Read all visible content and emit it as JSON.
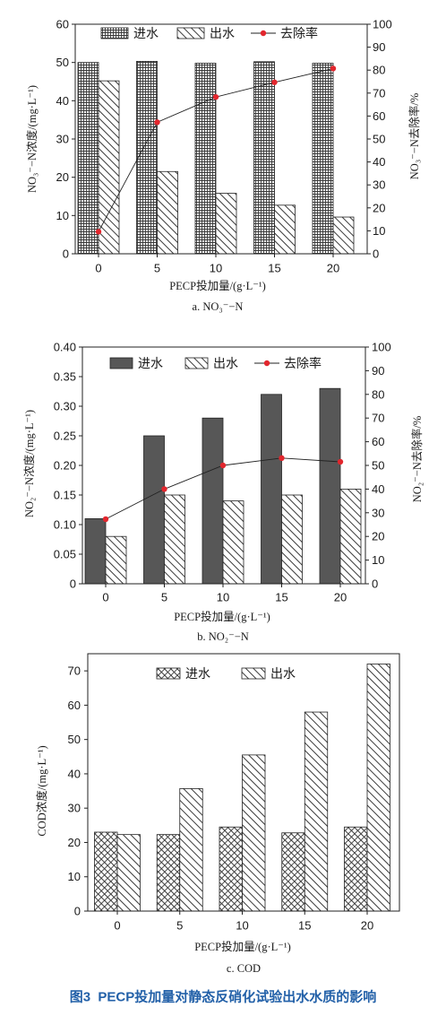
{
  "figure": {
    "caption": "图3  PECP投加量对静态反硝化试验出水水质的影响"
  },
  "colors": {
    "caption": "#2260a8",
    "axis": "#222222",
    "pattern_ink": "#3a3a3a",
    "bar_solid": "#575757",
    "rate_line": "#222222",
    "rate_marker": "#e2262d"
  },
  "chart_data": [
    {
      "type": "bar",
      "subcaption": "a. NO₃⁻−N",
      "categories": [
        "0",
        "5",
        "10",
        "15",
        "20"
      ],
      "xlabel": "PECP投加量/(g·L⁻¹)",
      "ylabel": "NO₃⁻−N浓度/(mg·L⁻¹)",
      "ylabel_right": "NO₃⁻−N去除率/%",
      "ylim": [
        0,
        60
      ],
      "yticks": [
        "0",
        "10",
        "20",
        "30",
        "40",
        "50",
        "60"
      ],
      "ylim_right": [
        0,
        100
      ],
      "yticks_right": [
        "0",
        "10",
        "20",
        "30",
        "40",
        "50",
        "60",
        "70",
        "80",
        "90",
        "100"
      ],
      "grid": false,
      "legend": {
        "position": "top"
      },
      "series": [
        {
          "name": "进水",
          "type": "bar",
          "values": [
            50.0,
            50.3,
            49.8,
            50.2,
            49.8
          ]
        },
        {
          "name": "出水",
          "type": "bar",
          "values": [
            45.2,
            21.5,
            15.8,
            12.7,
            9.6
          ]
        },
        {
          "name": "去除率",
          "type": "line",
          "axis": "right",
          "values": [
            9.6,
            57.3,
            68.3,
            74.7,
            80.7
          ]
        }
      ]
    },
    {
      "type": "bar",
      "subcaption": "b. NO₂⁻−N",
      "categories": [
        "0",
        "5",
        "10",
        "15",
        "20"
      ],
      "xlabel": "PECP投加量/(g·L⁻¹)",
      "ylabel": "NO₂⁻−N浓度/(mg·L⁻¹)",
      "ylabel_right": "NO₂⁻−N去除率/%",
      "ylim": [
        0,
        0.4
      ],
      "yticks": [
        "0",
        "0.05",
        "0.10",
        "0.15",
        "0.20",
        "0.25",
        "0.30",
        "0.35",
        "0.40"
      ],
      "ylim_right": [
        0,
        100
      ],
      "yticks_right": [
        "0",
        "10",
        "20",
        "30",
        "40",
        "50",
        "60",
        "70",
        "80",
        "90",
        "100"
      ],
      "grid": false,
      "legend": {
        "position": "top"
      },
      "series": [
        {
          "name": "进水",
          "type": "bar",
          "values": [
            0.11,
            0.25,
            0.28,
            0.32,
            0.33
          ]
        },
        {
          "name": "出水",
          "type": "bar",
          "values": [
            0.08,
            0.15,
            0.14,
            0.15,
            0.16
          ]
        },
        {
          "name": "去除率",
          "type": "line",
          "axis": "right",
          "values": [
            27.3,
            40.0,
            50.0,
            53.1,
            51.5
          ]
        }
      ]
    },
    {
      "type": "bar",
      "subcaption": "c. COD",
      "categories": [
        "0",
        "5",
        "10",
        "15",
        "20"
      ],
      "xlabel": "PECP投加量/(g·L⁻¹)",
      "ylabel": "COD浓度/(mg·L⁻¹)",
      "ylim": [
        0,
        75
      ],
      "yticks": [
        "0",
        "10",
        "20",
        "30",
        "40",
        "50",
        "60",
        "70"
      ],
      "grid": false,
      "legend": {
        "position": "top"
      },
      "series": [
        {
          "name": "进水",
          "type": "bar",
          "values": [
            23.0,
            22.3,
            24.5,
            22.8,
            24.5
          ]
        },
        {
          "name": "出水",
          "type": "bar",
          "values": [
            22.3,
            35.7,
            45.5,
            58.0,
            72.0
          ]
        }
      ]
    }
  ]
}
